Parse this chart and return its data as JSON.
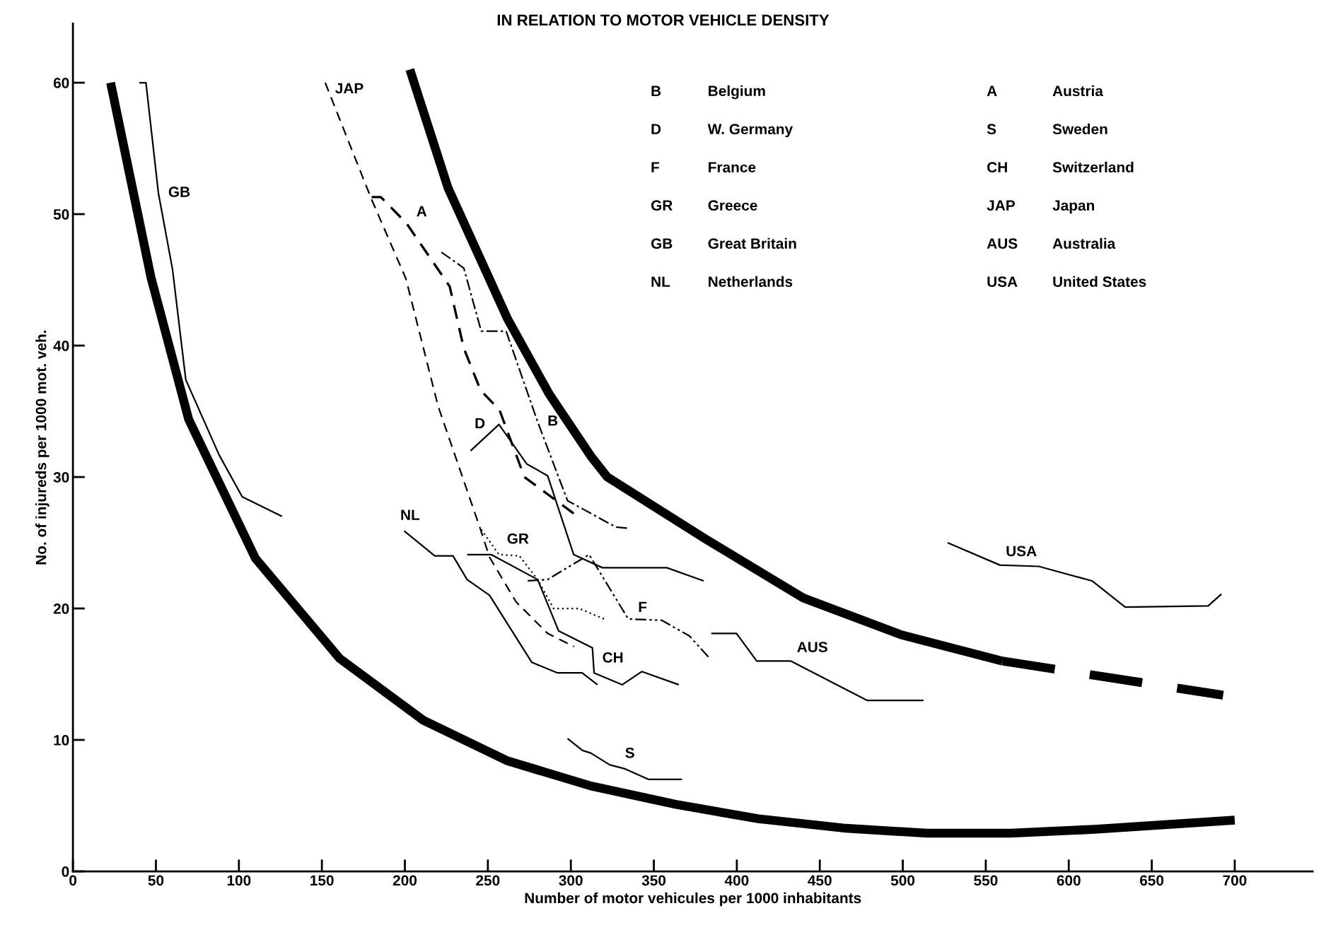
{
  "chart_data": {
    "type": "line",
    "title": "IN RELATION TO MOTOR VEHICLE DENSITY",
    "xlabel": "Number of motor vehicules per 1000 inhabitants",
    "ylabel": "No. of injureds per 1000 mot. veh.",
    "xlim": [
      0,
      747
    ],
    "ylim": [
      0,
      64.5
    ],
    "xticks": [
      0,
      50,
      100,
      150,
      200,
      250,
      300,
      350,
      400,
      450,
      500,
      550,
      600,
      650,
      700
    ],
    "yticks": [
      0,
      10,
      20,
      30,
      40,
      50,
      60
    ],
    "grid": false,
    "legend": false,
    "marker": "none",
    "annotations": [
      "B",
      "Belgium",
      "D",
      "W. Germany",
      "F",
      "France",
      "GR",
      "Greece",
      "GB",
      "Great Britain",
      "NL",
      "Netherlands",
      "A",
      "Austria",
      "S",
      "Sweden",
      "CH",
      "Switzerland",
      "JAP",
      "Japan",
      "AUS",
      "Australia",
      "USA",
      "United States"
    ],
    "series": [
      {
        "color": "#000000",
        "x": [
          22.7,
          47,
          69.7,
          110,
          160.7,
          211,
          262,
          312,
          363,
          413,
          464,
          514.5,
          565,
          615.6,
          700
        ],
        "values": [
          60,
          45.2,
          34.4,
          23.8,
          16.2,
          11.5,
          8.4,
          6.5,
          5.1,
          4.0,
          3.3,
          2.9,
          2.9,
          3.2,
          3.9
        ]
      },
      {
        "color": "#000000",
        "x": [
          203,
          226,
          262,
          287,
          312,
          322,
          381,
          440,
          499,
          560
        ],
        "values": [
          61,
          52,
          42,
          36.3,
          31.6,
          30,
          25.3,
          20.8,
          18.0,
          16.0
        ]
      },
      {
        "color": "#000000",
        "line_style": "dashed",
        "x": [
          560,
          693
        ],
        "values": [
          16.0,
          13.4
        ]
      },
      {
        "name": "GB",
        "color": "#000000",
        "x": [
          40,
          44,
          51.5,
          60,
          68,
          88,
          102,
          126
        ],
        "values": [
          60,
          60,
          51.6,
          45.8,
          37.4,
          31.7,
          28.5,
          27
        ]
      },
      {
        "name": "JAP",
        "color": "#000000",
        "line_style": "dashed",
        "x": [
          152,
          180,
          200.6,
          220,
          245.6,
          251,
          267,
          286,
          302
        ],
        "values": [
          60,
          51.1,
          45.1,
          35.4,
          26.0,
          23.9,
          20.5,
          18.1,
          17.1
        ]
      },
      {
        "name": "A",
        "color": "#000000",
        "line_style": "dashed",
        "x": [
          180,
          185.5,
          201,
          227,
          235.5,
          245.6,
          257,
          272,
          302
        ],
        "values": [
          51.3,
          51.3,
          49.3,
          44.5,
          39.8,
          36.6,
          35.1,
          30.0,
          27.2
        ]
      },
      {
        "name": "B",
        "color": "#000000",
        "line_style": "dashdot",
        "x": [
          222,
          235.5,
          246,
          261,
          280,
          298,
          327,
          334.6
        ],
        "values": [
          47.1,
          45.9,
          41.1,
          41.1,
          34.2,
          28.2,
          26.2,
          26.1
        ]
      },
      {
        "name": "D",
        "color": "#000000",
        "x": [
          239.6,
          256.7,
          273.4,
          286,
          301.7,
          319,
          357.8,
          380
        ],
        "values": [
          32.0,
          34.0,
          31.0,
          30.1,
          24.1,
          23.1,
          23.1,
          22.1
        ]
      },
      {
        "name": "F",
        "color": "#000000",
        "line_style": "dashdotdot",
        "x": [
          274,
          286,
          311,
          334.6,
          354.8,
          371.5,
          383
        ],
        "values": [
          22.1,
          22.2,
          24.1,
          19.2,
          19.1,
          17.9,
          16.3
        ]
      },
      {
        "name": "GR",
        "color": "#000000",
        "line_style": "dotted",
        "x": [
          246,
          256.7,
          269,
          280,
          289.6,
          305,
          320
        ],
        "values": [
          26.0,
          24.1,
          24.0,
          22.2,
          20.0,
          20.0,
          19.2
        ]
      },
      {
        "name": "CH",
        "color": "#000000",
        "x": [
          237.5,
          252,
          280,
          292.6,
          313,
          314,
          331,
          342.7,
          365
        ],
        "values": [
          24.1,
          24.1,
          22.2,
          18.3,
          17.0,
          15.1,
          14.2,
          15.2,
          14.2
        ]
      },
      {
        "name": "NL",
        "color": "#000000",
        "x": [
          199.6,
          218,
          229,
          237.5,
          251,
          276.5,
          292,
          306.8,
          316
        ],
        "values": [
          25.9,
          24.0,
          24.0,
          22.2,
          21.0,
          15.9,
          15.1,
          15.1,
          14.2
        ]
      },
      {
        "name": "AUS",
        "color": "#000000",
        "x": [
          384.6,
          399.8,
          412,
          432.6,
          478.6,
          512.5
        ],
        "values": [
          18.1,
          18.1,
          16.0,
          16.0,
          13.0,
          13.0
        ]
      },
      {
        "name": "USA",
        "color": "#000000",
        "x": [
          527,
          558.5,
          582,
          614,
          634,
          684,
          692
        ],
        "values": [
          25.0,
          23.3,
          23.2,
          22.1,
          20.1,
          20.2,
          21.1
        ]
      },
      {
        "name": "S",
        "color": "#000000",
        "x": [
          298,
          307,
          312,
          323.5,
          332.6,
          346.7,
          367
        ],
        "values": [
          10.1,
          9.2,
          9.0,
          8.1,
          7.8,
          7.0,
          7.0
        ]
      }
    ]
  }
}
